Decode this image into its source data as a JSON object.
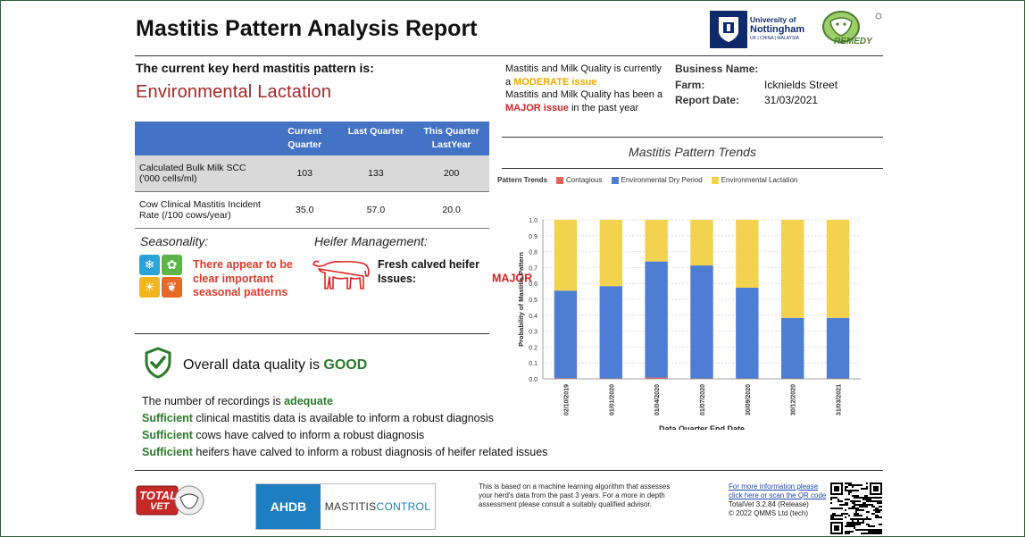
{
  "report": {
    "title": "Mastitis Pattern Analysis Report",
    "key_pattern_label": "The current key herd mastitis pattern is:",
    "key_pattern_value": "Environmental Lactation"
  },
  "logos": {
    "uni_name_1": "University of",
    "uni_name_2": "Nottingham",
    "uni_sub": "UK | CHINA | MALAYSIA",
    "remedy": "REMEDY",
    "totalvet_1": "TOTAL",
    "totalvet_2": "VET",
    "ahdb": "AHDB",
    "mastitis_control_1": "MASTITIS",
    "mastitis_control_2": "CONTROL"
  },
  "kpi_table": {
    "headers": [
      "",
      "Current Quarter",
      "Last Quarter",
      "This Quarter LastYear"
    ],
    "rows": [
      {
        "label": "Calculated Bulk Milk SCC ('000 cells/ml)",
        "current": "103",
        "last": "133",
        "last_year": "200"
      },
      {
        "label": "Cow Clinical Mastitis Incident Rate (/100 cows/year)",
        "current": "35.0",
        "last": "57.0",
        "last_year": "20.0"
      }
    ]
  },
  "seasonality": {
    "heading": "Seasonality:",
    "text": "There appear to be clear important seasonal patterns"
  },
  "heifer": {
    "heading": "Heifer Management:",
    "text_prefix": "Fresh calved heifer Issues: ",
    "status": "MAJOR"
  },
  "data_quality": {
    "overall_prefix": "Overall data quality is ",
    "overall_status": "GOOD",
    "lines": [
      {
        "prefix": "The number of recordings is ",
        "highlight": "adequate",
        "suffix": "",
        "highlight_first": false
      },
      {
        "prefix": "",
        "highlight": "Sufficient",
        "suffix": " clinical mastitis data is available to inform a robust diagnosis",
        "highlight_first": true
      },
      {
        "prefix": "",
        "highlight": "Sufficient",
        "suffix": " cows have calved to inform a robust diagnosis",
        "highlight_first": true
      },
      {
        "prefix": "",
        "highlight": "Sufficient",
        "suffix": " heifers have calved to inform a robust diagnosis of heifer related issues",
        "highlight_first": true
      }
    ]
  },
  "milk_quality": {
    "line1_prefix": "Mastitis and Milk Quality is currently a ",
    "line1_status": "MODERATE issue",
    "line2_prefix": "Mastitis and Milk Quality has been a ",
    "line2_status": "MAJOR issue",
    "line2_suffix": " in the past year"
  },
  "business": {
    "name_label": "Business Name:",
    "name_value": "",
    "farm_label": "Farm:",
    "farm_value": "Icknields Street",
    "date_label": "Report Date:",
    "date_value": "31/03/2021"
  },
  "chart_data": {
    "type": "bar",
    "stacked": true,
    "title": "Mastitis Pattern Trends",
    "legend_title": "Pattern Trends",
    "legend_position": "top-left",
    "xlabel": "Data Quarter End Date",
    "ylabel": "Probability of Mastitis Pattern",
    "ylim": [
      0,
      1.0
    ],
    "yticks": [
      "0.0",
      "0.1",
      "0.2",
      "0.3",
      "0.4",
      "0.5",
      "0.6",
      "0.7",
      "0.8",
      "0.9",
      "1.0"
    ],
    "grid": true,
    "categories": [
      "02/10/2019",
      "01/01/2020",
      "01/04/2020",
      "01/07/2020",
      "30/09/2020",
      "30/12/2020",
      "31/03/2021"
    ],
    "series": [
      {
        "name": "Contagious",
        "color": "#e8615a",
        "values": [
          0.005,
          0.003,
          0.008,
          0.003,
          0.003,
          0.003,
          0.003
        ]
      },
      {
        "name": "Environmental Dry Period",
        "color": "#4e7ed3",
        "values": [
          0.55,
          0.58,
          0.73,
          0.71,
          0.57,
          0.38,
          0.38
        ]
      },
      {
        "name": "Environmental Lactation",
        "color": "#f2d24f",
        "values": [
          0.445,
          0.417,
          0.262,
          0.287,
          0.427,
          0.617,
          0.617
        ]
      }
    ]
  },
  "footer": {
    "disclaimer": "This is based on a machine learning algorithm that assesses your herd's data from the past 3 years. For a more in depth assessment please consult a suitably qualified advisor.",
    "link1": "For more information please",
    "link2": "click here or scan the QR code",
    "version": "TotalVet 3.2.84 (Release)",
    "copyright": "© 2022 QMMS Ltd (tech)"
  },
  "colors": {
    "accent_blue": "#4472c4",
    "good_green": "#2a7a2a",
    "major_red": "#d42424",
    "moderate_orange": "#f0a800"
  }
}
